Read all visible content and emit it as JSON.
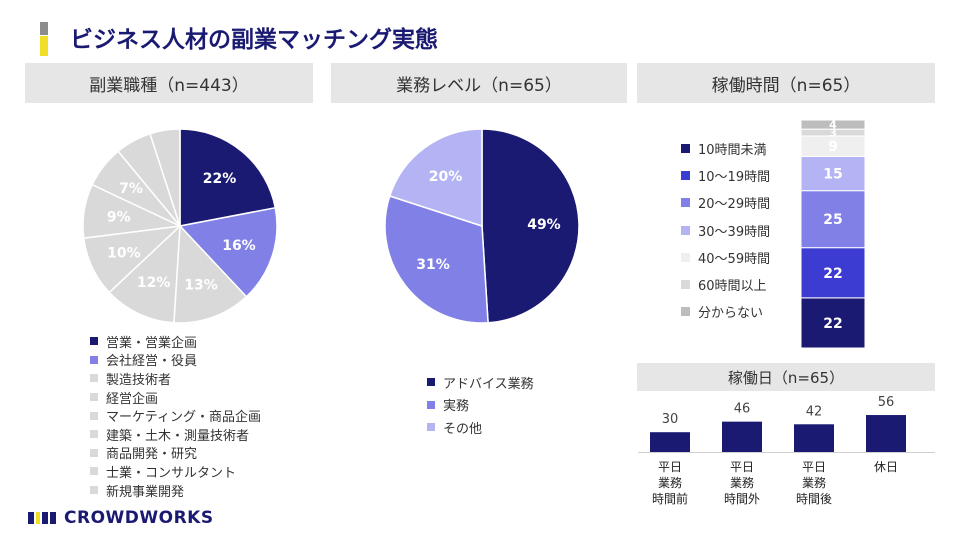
{
  "title": "ビジネス人材の副業マッチング実態",
  "brand": "CROWDWORKS",
  "colors": {
    "navy": "#1b1a72",
    "title": "#1b1a72",
    "yellow": "#f0de28"
  },
  "chart_data": [
    {
      "type": "pie",
      "title": "副業職種（n=443）",
      "labels": [
        "営業・営業企画",
        "会社経営・役員",
        "製造技術者",
        "経営企画",
        "マーケティング・商品企画",
        "建築・土木・測量技術者",
        "商品開発・研究",
        "士業・コンサルタント",
        "新規事業開発"
      ],
      "values": [
        22,
        16,
        13,
        12,
        10,
        9,
        7,
        6,
        5
      ],
      "data_labels": [
        "22%",
        "16%",
        "13%",
        "12%",
        "10%",
        "9%",
        "7%",
        "",
        ""
      ],
      "colors": [
        "#1b1a72",
        "#8080e6",
        "#d9d9d9",
        "#d9d9d9",
        "#d9d9d9",
        "#d9d9d9",
        "#d9d9d9",
        "#d9d9d9",
        "#d9d9d9"
      ]
    },
    {
      "type": "pie",
      "title": "業務レベル（n=65）",
      "labels": [
        "アドバイス業務",
        "実務",
        "その他"
      ],
      "values": [
        49,
        31,
        20
      ],
      "data_labels": [
        "49%",
        "31%",
        "20%"
      ],
      "colors": [
        "#1b1a72",
        "#8080e6",
        "#b4b4f5"
      ]
    },
    {
      "type": "bar",
      "stacked": true,
      "title": "稼働時間（n=65）",
      "labels": [
        "10時間未満",
        "10～19時間",
        "20～29時間",
        "30～39時間",
        "40～59時間",
        "60時間以上",
        "分からない"
      ],
      "values": [
        22,
        22,
        25,
        15,
        9,
        3,
        4
      ],
      "data_labels": [
        "22",
        "22",
        "25",
        "15",
        "9",
        "3",
        "4"
      ],
      "colors": [
        "#1b1a72",
        "#3c3cd2",
        "#8080e6",
        "#b4b4f5",
        "#efefef",
        "#d9d9d9",
        "#bdbdbd"
      ]
    },
    {
      "type": "bar",
      "title": "稼働日（n=65）",
      "categories": [
        "平日\n業務\n時間前",
        "平日\n業務\n時間外",
        "平日\n業務\n時間後",
        "休日"
      ],
      "values": [
        30,
        46,
        42,
        56
      ],
      "color": "#1b1a72"
    }
  ]
}
